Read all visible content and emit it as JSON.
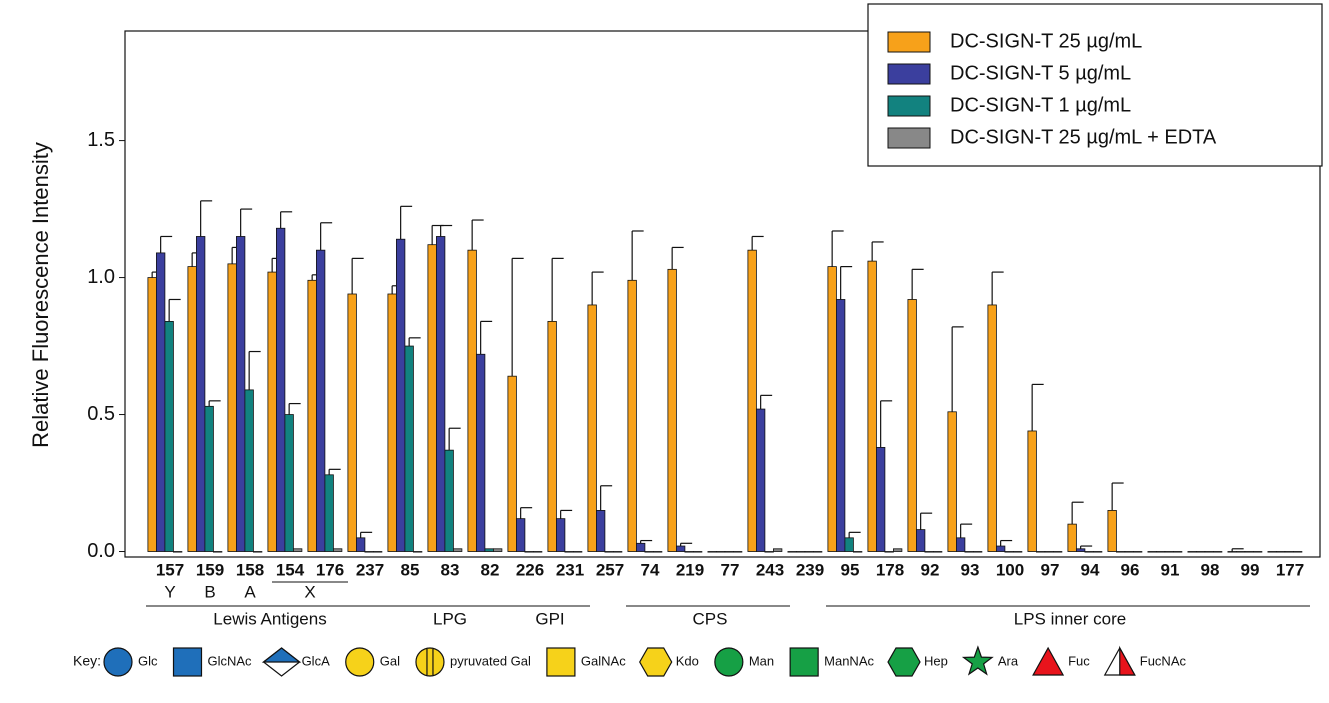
{
  "chart_data": {
    "type": "bar",
    "y_label": "Relative Fluorescence Intensity",
    "categories": [
      "157",
      "159",
      "158",
      "154",
      "176",
      "237",
      "85",
      "83",
      "82",
      "226",
      "231",
      "257",
      "74",
      "219",
      "77",
      "243",
      "239",
      "95",
      "178",
      "92",
      "93",
      "100",
      "97",
      "94",
      "96",
      "91",
      "98",
      "99",
      "177"
    ],
    "series": [
      {
        "name": "DC-SIGN-T 25 µg/mL",
        "color": "#f7a11a",
        "values": [
          1.0,
          1.04,
          1.05,
          1.02,
          0.99,
          0.94,
          0.94,
          1.12,
          1.1,
          0.64,
          0.84,
          0.9,
          0.99,
          1.03,
          0.0,
          1.1,
          0.0,
          1.04,
          1.06,
          0.92,
          0.51,
          0.9,
          0.44,
          0.1,
          0.15,
          0.0,
          0.0,
          0.0,
          0.0
        ],
        "errors": [
          0.02,
          0.05,
          0.06,
          0.05,
          0.02,
          0.13,
          0.03,
          0.07,
          0.11,
          0.43,
          0.23,
          0.12,
          0.18,
          0.08,
          0.0,
          0.05,
          0.0,
          0.13,
          0.07,
          0.11,
          0.31,
          0.12,
          0.17,
          0.08,
          0.1,
          0.0,
          0.0,
          0.01,
          0.0
        ]
      },
      {
        "name": "DC-SIGN-T 5 µg/mL",
        "color": "#3b3f9e",
        "values": [
          1.09,
          1.15,
          1.15,
          1.18,
          1.1,
          0.05,
          1.14,
          1.15,
          0.72,
          0.12,
          0.12,
          0.15,
          0.03,
          0.02,
          0.0,
          0.52,
          0.0,
          0.92,
          0.38,
          0.08,
          0.05,
          0.02,
          0.0,
          0.01,
          0.0,
          0.0,
          0.0,
          0.0,
          0.0
        ],
        "errors": [
          0.06,
          0.13,
          0.1,
          0.06,
          0.1,
          0.02,
          0.12,
          0.04,
          0.12,
          0.04,
          0.03,
          0.09,
          0.01,
          0.01,
          0.0,
          0.05,
          0.0,
          0.12,
          0.17,
          0.06,
          0.05,
          0.02,
          0.0,
          0.01,
          0.0,
          0.0,
          0.0,
          0.0,
          0.0
        ]
      },
      {
        "name": "DC-SIGN-T 1 µg/mL",
        "color": "#12827f",
        "values": [
          0.84,
          0.53,
          0.59,
          0.5,
          0.28,
          0.0,
          0.75,
          0.37,
          0.01,
          0.0,
          0.0,
          0.0,
          0.0,
          0.0,
          0.0,
          0.0,
          0.0,
          0.05,
          0.0,
          0.0,
          0.0,
          0.0,
          0.0,
          0.0,
          0.0,
          0.0,
          0.0,
          0.0,
          0.0
        ],
        "errors": [
          0.08,
          0.02,
          0.14,
          0.04,
          0.02,
          0.0,
          0.03,
          0.08,
          0.0,
          0.0,
          0.0,
          0.0,
          0.0,
          0.0,
          0.0,
          0.0,
          0.0,
          0.02,
          0.0,
          0.0,
          0.0,
          0.0,
          0.0,
          0.0,
          0.0,
          0.0,
          0.0,
          0.0,
          0.0
        ]
      },
      {
        "name": "DC-SIGN-T 25 µg/mL + EDTA",
        "color": "#888888",
        "values": [
          0.0,
          0.0,
          0.0,
          0.01,
          0.01,
          0.0,
          0.0,
          0.01,
          0.01,
          0.0,
          0.0,
          0.0,
          0.0,
          0.0,
          0.0,
          0.01,
          0.0,
          0.0,
          0.01,
          0.0,
          0.0,
          0.0,
          0.0,
          0.0,
          0.0,
          0.0,
          0.0,
          0.0,
          0.0
        ],
        "errors": [
          0.0,
          0.0,
          0.0,
          0.0,
          0.0,
          0.0,
          0.0,
          0.0,
          0.0,
          0.0,
          0.0,
          0.0,
          0.0,
          0.0,
          0.0,
          0.0,
          0.0,
          0.0,
          0.0,
          0.0,
          0.0,
          0.0,
          0.0,
          0.0,
          0.0,
          0.0,
          0.0,
          0.0,
          0.0
        ]
      }
    ],
    "ylim": [
      -0.02,
      1.9
    ],
    "yticks": [
      {
        "value": 0,
        "label": "0.0"
      },
      0.5,
      {
        "value": 1,
        "label": "1.0"
      },
      1.5
    ],
    "legend": "top-right",
    "subgroups": [
      {
        "label": "Y",
        "start": "157",
        "end": "157"
      },
      {
        "label": "B",
        "start": "159",
        "end": "159"
      },
      {
        "label": "A",
        "start": "158",
        "end": "158"
      },
      {
        "label": "X",
        "start": "154",
        "end": "176"
      }
    ],
    "groups": [
      {
        "label": "Lewis Antigens",
        "start": "157",
        "end": "237"
      },
      {
        "label": "LPG",
        "start": "85",
        "end": "82"
      },
      {
        "label": "GPI",
        "start": "226",
        "end": "231"
      },
      {
        "label": "CPS",
        "start": "74",
        "end": "243"
      },
      {
        "label": "LPS inner core",
        "start": "95",
        "end": "177"
      }
    ]
  },
  "key": {
    "title": "Key:",
    "items": [
      {
        "label": "Glc",
        "shape": "circle",
        "color": "#1f6fba"
      },
      {
        "label": "GlcNAc",
        "shape": "square",
        "color": "#1f6fba"
      },
      {
        "label": "GlcA",
        "shape": "diamond",
        "color": "#1f6fba"
      },
      {
        "label": "Gal",
        "shape": "circle",
        "color": "#f6d21a"
      },
      {
        "label": "pyruvated Gal",
        "shape": "circle-split",
        "color": "#f6d21a"
      },
      {
        "label": "GalNAc",
        "shape": "square",
        "color": "#f6d21a"
      },
      {
        "label": "Kdo",
        "shape": "hexagon",
        "color": "#f6d21a"
      },
      {
        "label": "Man",
        "shape": "circle",
        "color": "#16a045"
      },
      {
        "label": "ManNAc",
        "shape": "square",
        "color": "#16a045"
      },
      {
        "label": "Hep",
        "shape": "hexagon",
        "color": "#16a045"
      },
      {
        "label": "Ara",
        "shape": "star",
        "color": "#16a045"
      },
      {
        "label": "Fuc",
        "shape": "triangle",
        "color": "#e8141c"
      },
      {
        "label": "FucNAc",
        "shape": "triangle-split",
        "color": "#e8141c"
      }
    ]
  }
}
